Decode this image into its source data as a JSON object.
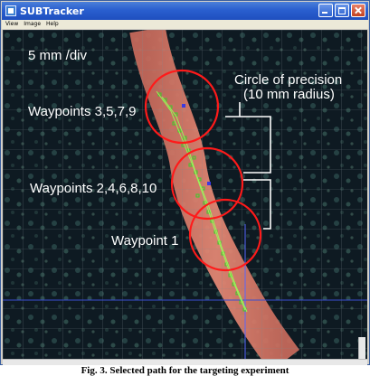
{
  "window": {
    "title": "SUBTracker",
    "titlebar_color": "#2a5fcf",
    "icons": [
      "app-icon",
      "minimize-icon",
      "maximize-icon",
      "close-icon"
    ]
  },
  "menu": {
    "items": [
      "View",
      "Image",
      "Help"
    ]
  },
  "image_view": {
    "background_color": "#0e1a22",
    "vessel_color": "#e0826e",
    "circle_color": "#ff1a1a",
    "waypoint_color": "#3ccc2a",
    "scale_label": "5 mm /div",
    "precision_label_line1": "Circle of precision",
    "precision_label_line2": "(10 mm radius)",
    "waypoint_labels": [
      "Waypoints 3,5,7,9",
      "Waypoints 2,4,6,8,10",
      "Waypoint 1"
    ]
  },
  "caption": "Fig. 3. Selected path for the targeting experiment"
}
